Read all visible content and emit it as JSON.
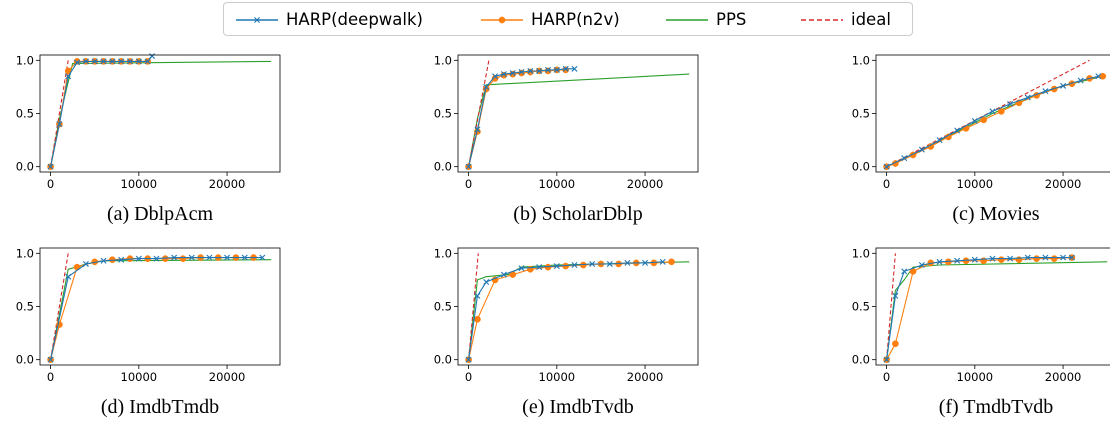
{
  "legend": {
    "items": [
      {
        "label": "HARP(deepwalk)",
        "color": "#1f77b4",
        "marker": "x",
        "style": "solid"
      },
      {
        "label": "HARP(n2v)",
        "color": "#ff7f0e",
        "marker": "o",
        "style": "solid"
      },
      {
        "label": "PPS",
        "color": "#2ca02c",
        "marker": "",
        "style": "solid"
      },
      {
        "label": "ideal",
        "color": "#d62728",
        "marker": "",
        "style": "dashed"
      }
    ]
  },
  "chart_data": [
    {
      "type": "line",
      "caption": "(a) DblpAcm",
      "xlim": [
        -1200,
        26000
      ],
      "ylim": [
        -0.05,
        1.05
      ],
      "xticks": [
        0,
        10000,
        20000
      ],
      "yticks": [
        0.0,
        0.5,
        1.0
      ],
      "xtick_labels": [
        "0",
        "10000",
        "20000"
      ],
      "ytick_labels": [
        "0.0",
        "0.5",
        "1.0"
      ],
      "series": [
        {
          "name": "HARP(deepwalk)",
          "x": [
            0,
            1000,
            2000,
            3000,
            4000,
            5000,
            6000,
            7000,
            8000,
            9000,
            10000,
            11000,
            11500
          ],
          "y": [
            0.0,
            0.4,
            0.85,
            0.98,
            0.99,
            0.99,
            0.99,
            0.99,
            0.99,
            0.99,
            0.99,
            0.99,
            1.04
          ]
        },
        {
          "name": "HARP(n2v)",
          "x": [
            0,
            1000,
            2000,
            3000,
            4000,
            5000,
            6000,
            7000,
            8000,
            9000,
            10000,
            11000
          ],
          "y": [
            0.0,
            0.4,
            0.9,
            0.99,
            0.99,
            0.99,
            0.99,
            0.99,
            0.99,
            0.99,
            0.99,
            0.99
          ]
        },
        {
          "name": "PPS",
          "x": [
            0,
            1000,
            2500,
            25000
          ],
          "y": [
            0.0,
            0.45,
            0.97,
            0.99
          ]
        },
        {
          "name": "ideal",
          "x": [
            0,
            2000
          ],
          "y": [
            0.0,
            1.0
          ]
        }
      ]
    },
    {
      "type": "line",
      "caption": "(b) ScholarDblp",
      "xlim": [
        -1200,
        26000
      ],
      "ylim": [
        -0.05,
        1.05
      ],
      "xticks": [
        0,
        10000,
        20000
      ],
      "yticks": [
        0.0,
        0.5,
        1.0
      ],
      "xtick_labels": [
        "0",
        "10000",
        "20000"
      ],
      "ytick_labels": [
        "0.0",
        "0.5",
        "1.0"
      ],
      "series": [
        {
          "name": "HARP(deepwalk)",
          "x": [
            0,
            1000,
            2000,
            3000,
            4000,
            5000,
            6000,
            7000,
            8000,
            9000,
            10000,
            11000,
            12000
          ],
          "y": [
            0.0,
            0.35,
            0.75,
            0.85,
            0.87,
            0.88,
            0.89,
            0.9,
            0.9,
            0.91,
            0.91,
            0.92,
            0.92
          ]
        },
        {
          "name": "HARP(n2v)",
          "x": [
            0,
            1000,
            2000,
            3000,
            4000,
            5000,
            6000,
            7000,
            8000,
            9000,
            10000,
            11000
          ],
          "y": [
            0.0,
            0.33,
            0.73,
            0.83,
            0.86,
            0.87,
            0.88,
            0.89,
            0.9,
            0.9,
            0.91,
            0.91
          ]
        },
        {
          "name": "PPS",
          "x": [
            0,
            1000,
            2000,
            25000
          ],
          "y": [
            0.0,
            0.45,
            0.77,
            0.87
          ]
        },
        {
          "name": "ideal",
          "x": [
            0,
            2300
          ],
          "y": [
            0.0,
            1.0
          ]
        }
      ]
    },
    {
      "type": "line",
      "caption": "(c) Movies",
      "xlim": [
        -1200,
        26000
      ],
      "ylim": [
        -0.05,
        1.05
      ],
      "xticks": [
        0,
        10000,
        20000
      ],
      "yticks": [
        0.0,
        0.5,
        1.0
      ],
      "xtick_labels": [
        "0",
        "10000",
        "20000"
      ],
      "ytick_labels": [
        "0.0",
        "0.5",
        "1.0"
      ],
      "series": [
        {
          "name": "HARP(deepwalk)",
          "x": [
            0,
            2000,
            4000,
            6000,
            8000,
            10000,
            12000,
            14000,
            16000,
            18000,
            20000,
            22000,
            24000
          ],
          "y": [
            0.0,
            0.08,
            0.16,
            0.25,
            0.34,
            0.43,
            0.52,
            0.59,
            0.65,
            0.71,
            0.76,
            0.81,
            0.85
          ]
        },
        {
          "name": "HARP(n2v)",
          "x": [
            0,
            1000,
            3000,
            5000,
            7000,
            9000,
            11000,
            13000,
            15000,
            17000,
            19000,
            21000,
            23000,
            24500
          ],
          "y": [
            0.0,
            0.03,
            0.11,
            0.19,
            0.28,
            0.36,
            0.44,
            0.52,
            0.6,
            0.67,
            0.73,
            0.78,
            0.83,
            0.85
          ]
        },
        {
          "name": "PPS",
          "x": [
            0,
            4000,
            8000,
            12000,
            16000,
            20000,
            24500
          ],
          "y": [
            0.0,
            0.16,
            0.33,
            0.5,
            0.64,
            0.76,
            0.85
          ]
        },
        {
          "name": "ideal",
          "x": [
            0,
            23000
          ],
          "y": [
            0.0,
            1.0
          ]
        }
      ]
    },
    {
      "type": "line",
      "caption": "(d) ImdbTmdb",
      "xlim": [
        -1200,
        26000
      ],
      "ylim": [
        -0.05,
        1.05
      ],
      "xticks": [
        0,
        10000,
        20000
      ],
      "yticks": [
        0.0,
        0.5,
        1.0
      ],
      "xtick_labels": [
        "0",
        "10000",
        "20000"
      ],
      "ytick_labels": [
        "0.0",
        "0.5",
        "1.0"
      ],
      "series": [
        {
          "name": "HARP(deepwalk)",
          "x": [
            0,
            2000,
            4000,
            6000,
            8000,
            10000,
            12000,
            14000,
            16000,
            18000,
            20000,
            22000,
            24000
          ],
          "y": [
            0.0,
            0.78,
            0.9,
            0.93,
            0.94,
            0.95,
            0.95,
            0.96,
            0.96,
            0.96,
            0.96,
            0.96,
            0.96
          ]
        },
        {
          "name": "HARP(n2v)",
          "x": [
            0,
            1000,
            3000,
            5000,
            7000,
            9000,
            11000,
            13000,
            15000,
            17000,
            19000,
            21000,
            23000
          ],
          "y": [
            0.0,
            0.33,
            0.87,
            0.92,
            0.94,
            0.95,
            0.95,
            0.95,
            0.95,
            0.96,
            0.96,
            0.96,
            0.96
          ]
        },
        {
          "name": "PPS",
          "x": [
            0,
            2000,
            4000,
            6000,
            25000
          ],
          "y": [
            0.0,
            0.85,
            0.9,
            0.93,
            0.94
          ]
        },
        {
          "name": "ideal",
          "x": [
            0,
            2000
          ],
          "y": [
            0.0,
            1.0
          ]
        }
      ]
    },
    {
      "type": "line",
      "caption": "(e) ImdbTvdb",
      "xlim": [
        -1200,
        26000
      ],
      "ylim": [
        -0.05,
        1.05
      ],
      "xticks": [
        0,
        10000,
        20000
      ],
      "yticks": [
        0.0,
        0.5,
        1.0
      ],
      "xtick_labels": [
        "0",
        "10000",
        "20000"
      ],
      "ytick_labels": [
        "0.0",
        "0.5",
        "1.0"
      ],
      "series": [
        {
          "name": "HARP(deepwalk)",
          "x": [
            0,
            1000,
            2000,
            4000,
            6000,
            8000,
            10000,
            12000,
            14000,
            16000,
            18000,
            20000,
            22000
          ],
          "y": [
            0.0,
            0.6,
            0.73,
            0.8,
            0.86,
            0.87,
            0.88,
            0.89,
            0.9,
            0.9,
            0.91,
            0.91,
            0.92
          ]
        },
        {
          "name": "HARP(n2v)",
          "x": [
            0,
            1000,
            3000,
            5000,
            7000,
            9000,
            11000,
            13000,
            15000,
            17000,
            19000,
            21000,
            23000
          ],
          "y": [
            0.0,
            0.38,
            0.75,
            0.8,
            0.85,
            0.87,
            0.88,
            0.89,
            0.9,
            0.9,
            0.91,
            0.91,
            0.92
          ]
        },
        {
          "name": "PPS",
          "x": [
            0,
            1000,
            2000,
            4500,
            6000,
            10000,
            25000
          ],
          "y": [
            0.0,
            0.75,
            0.78,
            0.8,
            0.87,
            0.89,
            0.92
          ]
        },
        {
          "name": "ideal",
          "x": [
            0,
            1100
          ],
          "y": [
            0.0,
            1.0
          ]
        }
      ]
    },
    {
      "type": "line",
      "caption": "(f) TmdbTvdb",
      "xlim": [
        -1200,
        26000
      ],
      "ylim": [
        -0.05,
        1.05
      ],
      "xticks": [
        0,
        10000,
        20000
      ],
      "yticks": [
        0.0,
        0.5,
        1.0
      ],
      "xtick_labels": [
        "0",
        "10000",
        "20000"
      ],
      "ytick_labels": [
        "0.0",
        "0.5",
        "1.0"
      ],
      "series": [
        {
          "name": "HARP(deepwalk)",
          "x": [
            0,
            1000,
            2000,
            4000,
            6000,
            8000,
            10000,
            12000,
            14000,
            16000,
            18000,
            20000,
            21000
          ],
          "y": [
            0.0,
            0.6,
            0.83,
            0.89,
            0.92,
            0.93,
            0.94,
            0.95,
            0.95,
            0.96,
            0.96,
            0.96,
            0.96
          ]
        },
        {
          "name": "HARP(n2v)",
          "x": [
            0,
            1000,
            3000,
            5000,
            7000,
            9000,
            11000,
            13000,
            15000,
            17000,
            19000,
            21000
          ],
          "y": [
            0.0,
            0.15,
            0.83,
            0.91,
            0.92,
            0.93,
            0.93,
            0.94,
            0.94,
            0.95,
            0.95,
            0.96
          ]
        },
        {
          "name": "PPS",
          "x": [
            0,
            1000,
            2000,
            3000,
            6000,
            25000
          ],
          "y": [
            0.0,
            0.65,
            0.75,
            0.87,
            0.89,
            0.92
          ]
        },
        {
          "name": "ideal",
          "x": [
            0,
            1000
          ],
          "y": [
            0.0,
            1.0
          ]
        }
      ]
    }
  ]
}
